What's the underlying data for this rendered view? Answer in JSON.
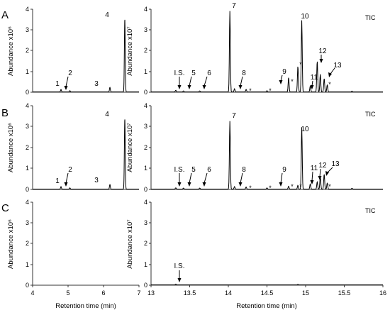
{
  "chart_data": [
    {
      "type": "line",
      "panel": "A",
      "series": [
        {
          "name": "left",
          "x": [
            4.8,
            5.05,
            6.18,
            6.6
          ],
          "y": [
            0.12,
            0.06,
            0.22,
            3.5
          ]
        },
        {
          "name": "right",
          "x": [
            13.32,
            13.42,
            13.63,
            14.02,
            14.08,
            14.23,
            14.5,
            14.78,
            14.9,
            14.95,
            15.06,
            15.15,
            15.19,
            15.24,
            15.28,
            15.6
          ],
          "y": [
            0.08,
            0.05,
            0.05,
            3.9,
            0.15,
            0.12,
            0.06,
            0.7,
            1.25,
            3.45,
            0.28,
            1.5,
            0.85,
            0.65,
            0.35,
            0.04
          ]
        }
      ],
      "panel_label": "A",
      "label_tic": "TIC",
      "ylabel_left": "Abundance x10⁶",
      "ylabel_right": "Abundance x10⁷",
      "yticks": [
        "0",
        "1",
        "2",
        "3",
        "4"
      ],
      "ylim": [
        0,
        4
      ],
      "left_xlim": [
        4,
        7
      ],
      "right_xlim": [
        13,
        16
      ],
      "peaks_left": [
        "1",
        "2",
        "3",
        "4"
      ],
      "peaks_right": [
        "I.S.",
        "5",
        "6",
        "7",
        "8",
        "9",
        "10",
        "11",
        "12",
        "13"
      ],
      "stars": [
        "*",
        "*",
        "*",
        "*",
        "*"
      ]
    },
    {
      "type": "line",
      "panel": "B",
      "series": [
        {
          "name": "left",
          "x": [
            4.8,
            5.05,
            6.18,
            6.6
          ],
          "y": [
            0.12,
            0.06,
            0.22,
            3.35
          ]
        },
        {
          "name": "right",
          "x": [
            13.32,
            13.42,
            13.63,
            14.02,
            14.08,
            14.23,
            14.5,
            14.78,
            14.9,
            14.95,
            15.06,
            15.15,
            15.19,
            15.24,
            15.28,
            15.6
          ],
          "y": [
            0.06,
            0.05,
            0.05,
            3.25,
            0.12,
            0.1,
            0.06,
            0.14,
            0.18,
            2.95,
            0.25,
            0.35,
            0.6,
            0.72,
            0.3,
            0.04
          ]
        }
      ],
      "panel_label": "B",
      "label_tic": "TIC",
      "ylabel_left": "Abundance x10⁶",
      "ylabel_right": "Abundance x10⁷",
      "yticks": [
        "0",
        "1",
        "2",
        "3",
        "4"
      ],
      "ylim": [
        0,
        4
      ],
      "left_xlim": [
        4,
        7
      ],
      "right_xlim": [
        13,
        16
      ],
      "peaks_left": [
        "1",
        "2",
        "3",
        "4"
      ],
      "peaks_right": [
        "I.S.",
        "5",
        "6",
        "7",
        "8",
        "9",
        "10",
        "11",
        "12",
        "13"
      ],
      "stars": [
        "*",
        "*",
        "*",
        "*",
        "*"
      ]
    },
    {
      "type": "line",
      "panel": "C",
      "series": [
        {
          "name": "left",
          "x": [],
          "y": []
        },
        {
          "name": "right",
          "x": [
            13.32,
            14.9
          ],
          "y": [
            0.04,
            0.03
          ]
        }
      ],
      "panel_label": "C",
      "label_tic": "TIC",
      "ylabel_left": "Abundance x10⁶",
      "ylabel_right": "Abundance x10⁷",
      "yticks": [
        "0",
        "1",
        "2",
        "3",
        "4"
      ],
      "ylim": [
        0,
        4
      ],
      "left_xlim": [
        4,
        7
      ],
      "right_xlim": [
        13,
        16
      ],
      "xticks_left": [
        "4",
        "5",
        "6",
        "7"
      ],
      "xticks_right": [
        "13",
        "13.5",
        "14",
        "14.5",
        "15",
        "15.5",
        "16"
      ],
      "xlabel": "Retention time (min)",
      "peaks_right": [
        "I.S."
      ]
    }
  ]
}
